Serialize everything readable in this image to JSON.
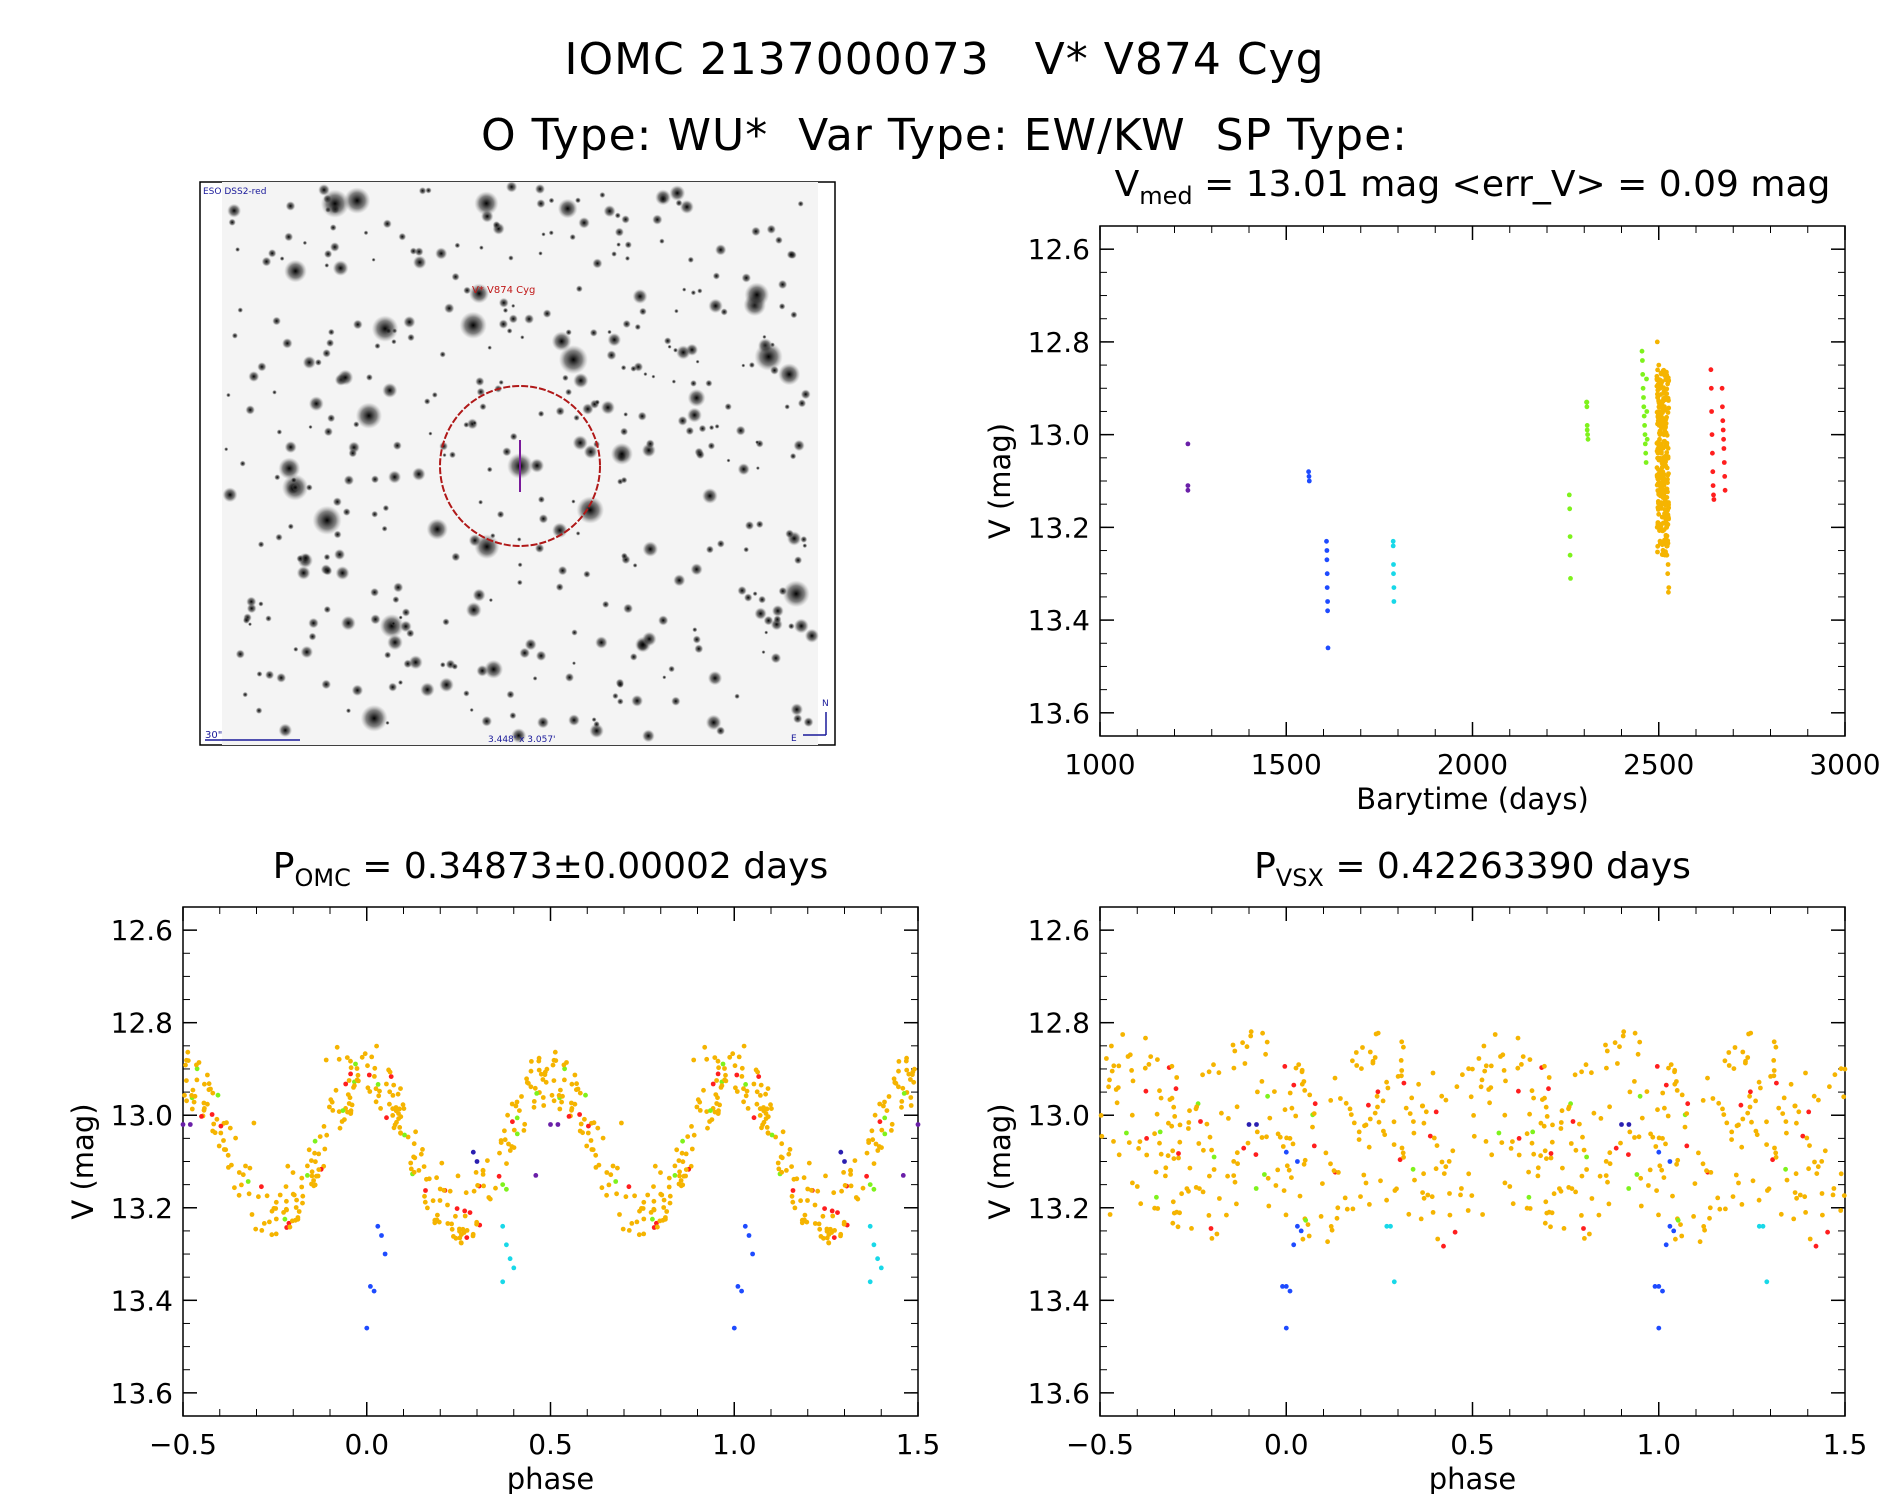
{
  "header": {
    "line1": "IOMC 2137000073   V* V874 Cyg",
    "line2": "O Type: WU*  Var Type: EW/KW  SP Type:"
  },
  "image_panel": {
    "top_left_label": "ESO DSS2-red",
    "target_label": "V* V874 Cyg",
    "scale_label": "30\"",
    "size_label": "3.448' x 3.057'",
    "compass_n": "N",
    "compass_e": "E"
  },
  "colors": {
    "purple": "#6a1fa8",
    "blue": "#1e4bff",
    "cyan": "#18d8e8",
    "green": "#7ef21c",
    "orange": "#f5b400",
    "red": "#ff1e1e",
    "navy": "#2a1fb0"
  },
  "chart_data": [
    {
      "id": "lightcurve",
      "type": "scatter",
      "title_main": "V",
      "title_sub": "med",
      "title_rest": " = 13.01 mag <err_V> = 0.09 mag",
      "xlabel": "Barytime (days)",
      "ylabel": "V (mag)",
      "xlim": [
        1000,
        3000
      ],
      "ylim": [
        13.65,
        12.55
      ],
      "y_inverted": true,
      "xticks": [
        "1000",
        "1500",
        "2000",
        "2500",
        "3000"
      ],
      "yticks": [
        "12.6",
        "12.8",
        "13.0",
        "13.2",
        "13.4",
        "13.6"
      ],
      "series": [
        {
          "color": "purple",
          "x": [
            1236,
            1236,
            1236
          ],
          "y": [
            13.02,
            13.11,
            13.12
          ]
        },
        {
          "color": "blue",
          "x": [
            1560,
            1561,
            1562,
            1608,
            1609,
            1609,
            1610,
            1610,
            1611,
            1611,
            1612
          ],
          "y": [
            13.08,
            13.09,
            13.1,
            13.23,
            13.25,
            13.27,
            13.3,
            13.33,
            13.36,
            13.38,
            13.46
          ]
        },
        {
          "color": "cyan",
          "x": [
            1787,
            1787,
            1788,
            1788,
            1789,
            1789
          ],
          "y": [
            13.23,
            13.24,
            13.28,
            13.3,
            13.33,
            13.36
          ]
        },
        {
          "color": "green",
          "x": [
            2260,
            2261,
            2262,
            2262,
            2263,
            2306,
            2307,
            2307,
            2308,
            2308,
            2309,
            2310
          ],
          "y": [
            13.13,
            13.16,
            13.22,
            13.26,
            13.31,
            12.93,
            12.94,
            12.93,
            12.98,
            12.99,
            13.0,
            13.01
          ]
        },
        {
          "color": "green",
          "x": [
            2455,
            2456,
            2457,
            2458,
            2459,
            2460,
            2461,
            2462,
            2463,
            2464,
            2465,
            2466,
            2467,
            2468,
            2469
          ],
          "y": [
            12.82,
            12.84,
            12.87,
            12.9,
            12.92,
            12.94,
            12.96,
            12.98,
            13.0,
            13.02,
            13.04,
            13.06,
            12.88,
            12.95,
            13.01
          ]
        },
        {
          "color": "orange",
          "x": [
            2495,
            2497,
            2499,
            2501,
            2503,
            2505,
            2507,
            2509,
            2511,
            2513,
            2515,
            2517,
            2519,
            2521,
            2523,
            2525,
            2527,
            2496,
            2500,
            2504,
            2508,
            2512,
            2516,
            2520,
            2524,
            2498,
            2502,
            2506,
            2510,
            2514,
            2518,
            2522,
            2526
          ],
          "y": [
            12.88,
            12.92,
            12.95,
            12.98,
            13.0,
            13.02,
            13.04,
            13.06,
            13.08,
            13.1,
            13.12,
            13.14,
            13.17,
            13.2,
            13.24,
            13.28,
            13.33,
            12.8,
            12.85,
            12.9,
            12.97,
            13.05,
            13.15,
            13.22,
            13.3,
            12.96,
            13.01,
            13.03,
            13.07,
            13.11,
            13.18,
            13.26,
            13.34
          ]
        },
        {
          "color": "red",
          "x": [
            2640,
            2641,
            2642,
            2643,
            2644,
            2645,
            2646,
            2647,
            2648,
            2670,
            2671,
            2672,
            2673,
            2674,
            2675,
            2676,
            2677,
            2678
          ],
          "y": [
            12.86,
            12.9,
            12.95,
            13.0,
            13.04,
            13.08,
            13.11,
            13.13,
            13.14,
            12.9,
            12.94,
            12.97,
            12.99,
            13.01,
            13.03,
            13.06,
            13.09,
            13.12
          ]
        }
      ]
    },
    {
      "id": "phase_omc",
      "type": "scatter",
      "title_main": "P",
      "title_sub": "OMC",
      "title_rest": " = 0.34873±0.00002 days",
      "xlabel": "phase",
      "ylabel": "V (mag)",
      "xlim": [
        -0.5,
        1.5
      ],
      "ylim": [
        13.65,
        12.55
      ],
      "y_inverted": true,
      "xticks": [
        "−0.5",
        "0.0",
        "0.5",
        "1.0",
        "1.5"
      ],
      "yticks": [
        "12.6",
        "12.8",
        "13.0",
        "13.2",
        "13.4",
        "13.6"
      ],
      "profile": "double-hump (sine) with maxima near phase 0.25/0.75, minimum near phase 0.0 at 13.45"
    },
    {
      "id": "phase_vsx",
      "type": "scatter",
      "title_main": "P",
      "title_sub": "VSX",
      "title_rest": " = 0.42263390 days",
      "xlabel": "phase",
      "ylabel": "V (mag)",
      "xlim": [
        -0.5,
        1.5
      ],
      "ylim": [
        13.65,
        12.55
      ],
      "y_inverted": true,
      "xticks": [
        "−0.5",
        "0.0",
        "0.5",
        "1.0",
        "1.5"
      ],
      "yticks": [
        "12.6",
        "12.8",
        "13.0",
        "13.2",
        "13.4",
        "13.6"
      ],
      "profile": "scattered, no coherent curve"
    }
  ]
}
